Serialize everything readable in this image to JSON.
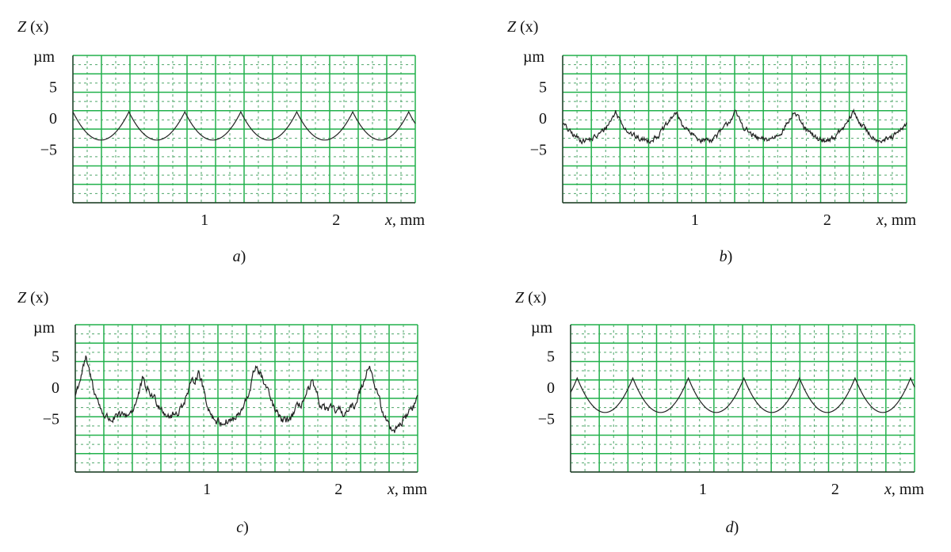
{
  "chart_data": [
    {
      "type": "line",
      "panel_label": "a",
      "y_label_name": "Z",
      "y_label_arg": "(x)",
      "y_unit": "µm",
      "x_label_name": "x",
      "x_label_unit": ", mm",
      "x_ticks": [
        1,
        2
      ],
      "y_ticks": [
        5,
        0,
        -5
      ],
      "y_tick_labels": [
        "5",
        "0",
        "−5"
      ],
      "xlim": [
        0,
        2.6
      ],
      "ylim": [
        -13.5,
        10
      ],
      "grid": true,
      "line_color": "#222222",
      "grid_color": "#22b14c",
      "profile": {
        "x0": -0.0,
        "period": 0.425,
        "peak": 1.0,
        "trough": -3.5,
        "x_end": 2.6,
        "noise": 0.0,
        "wobble": 0.0
      }
    },
    {
      "type": "line",
      "panel_label": "b",
      "y_label_name": "Z",
      "y_label_arg": "(x)",
      "y_unit": "µm",
      "x_label_name": "x",
      "x_label_unit": ", mm",
      "x_ticks": [
        1,
        2
      ],
      "y_ticks": [
        5,
        0,
        -5
      ],
      "y_tick_labels": [
        "5",
        "0",
        "−5"
      ],
      "xlim": [
        0,
        2.6
      ],
      "ylim": [
        -13.5,
        10
      ],
      "grid": true,
      "line_color": "#222222",
      "grid_color": "#22b14c",
      "profile": {
        "x0": -0.05,
        "period": 0.45,
        "peak": 1.0,
        "trough": -3.5,
        "x_end": 2.6,
        "noise": 0.55,
        "wobble": 0.0
      }
    },
    {
      "type": "line",
      "panel_label": "c",
      "y_label_name": "Z",
      "y_label_arg": "(x)",
      "y_unit": "µm",
      "x_label_name": "x",
      "x_label_unit": ", mm",
      "x_ticks": [
        1,
        2
      ],
      "y_ticks": [
        5,
        0,
        -5
      ],
      "y_tick_labels": [
        "5",
        "0",
        "−5"
      ],
      "xlim": [
        0,
        2.6
      ],
      "ylim": [
        -13.5,
        10
      ],
      "grid": true,
      "line_color": "#222222",
      "grid_color": "#22b14c",
      "profile": {
        "x0": 0.08,
        "period": 0.43,
        "peak": 2.5,
        "trough": -5.0,
        "x_end": 2.6,
        "noise": 0.8,
        "wobble": 1.5
      }
    },
    {
      "type": "line",
      "panel_label": "d",
      "y_label_name": "Z",
      "y_label_arg": "(x)",
      "y_unit": "µm",
      "x_label_name": "x",
      "x_label_unit": ", mm",
      "x_ticks": [
        1,
        2
      ],
      "y_ticks": [
        5,
        0,
        -5
      ],
      "y_tick_labels": [
        "5",
        "0",
        "−5"
      ],
      "xlim": [
        0,
        2.6
      ],
      "ylim": [
        -13.5,
        10
      ],
      "grid": true,
      "line_color": "#222222",
      "grid_color": "#22b14c",
      "profile": {
        "x0": 0.05,
        "period": 0.42,
        "peak": 1.5,
        "trough": -4.0,
        "x_end": 2.6,
        "noise": 0.0,
        "wobble": 0.0
      }
    }
  ]
}
